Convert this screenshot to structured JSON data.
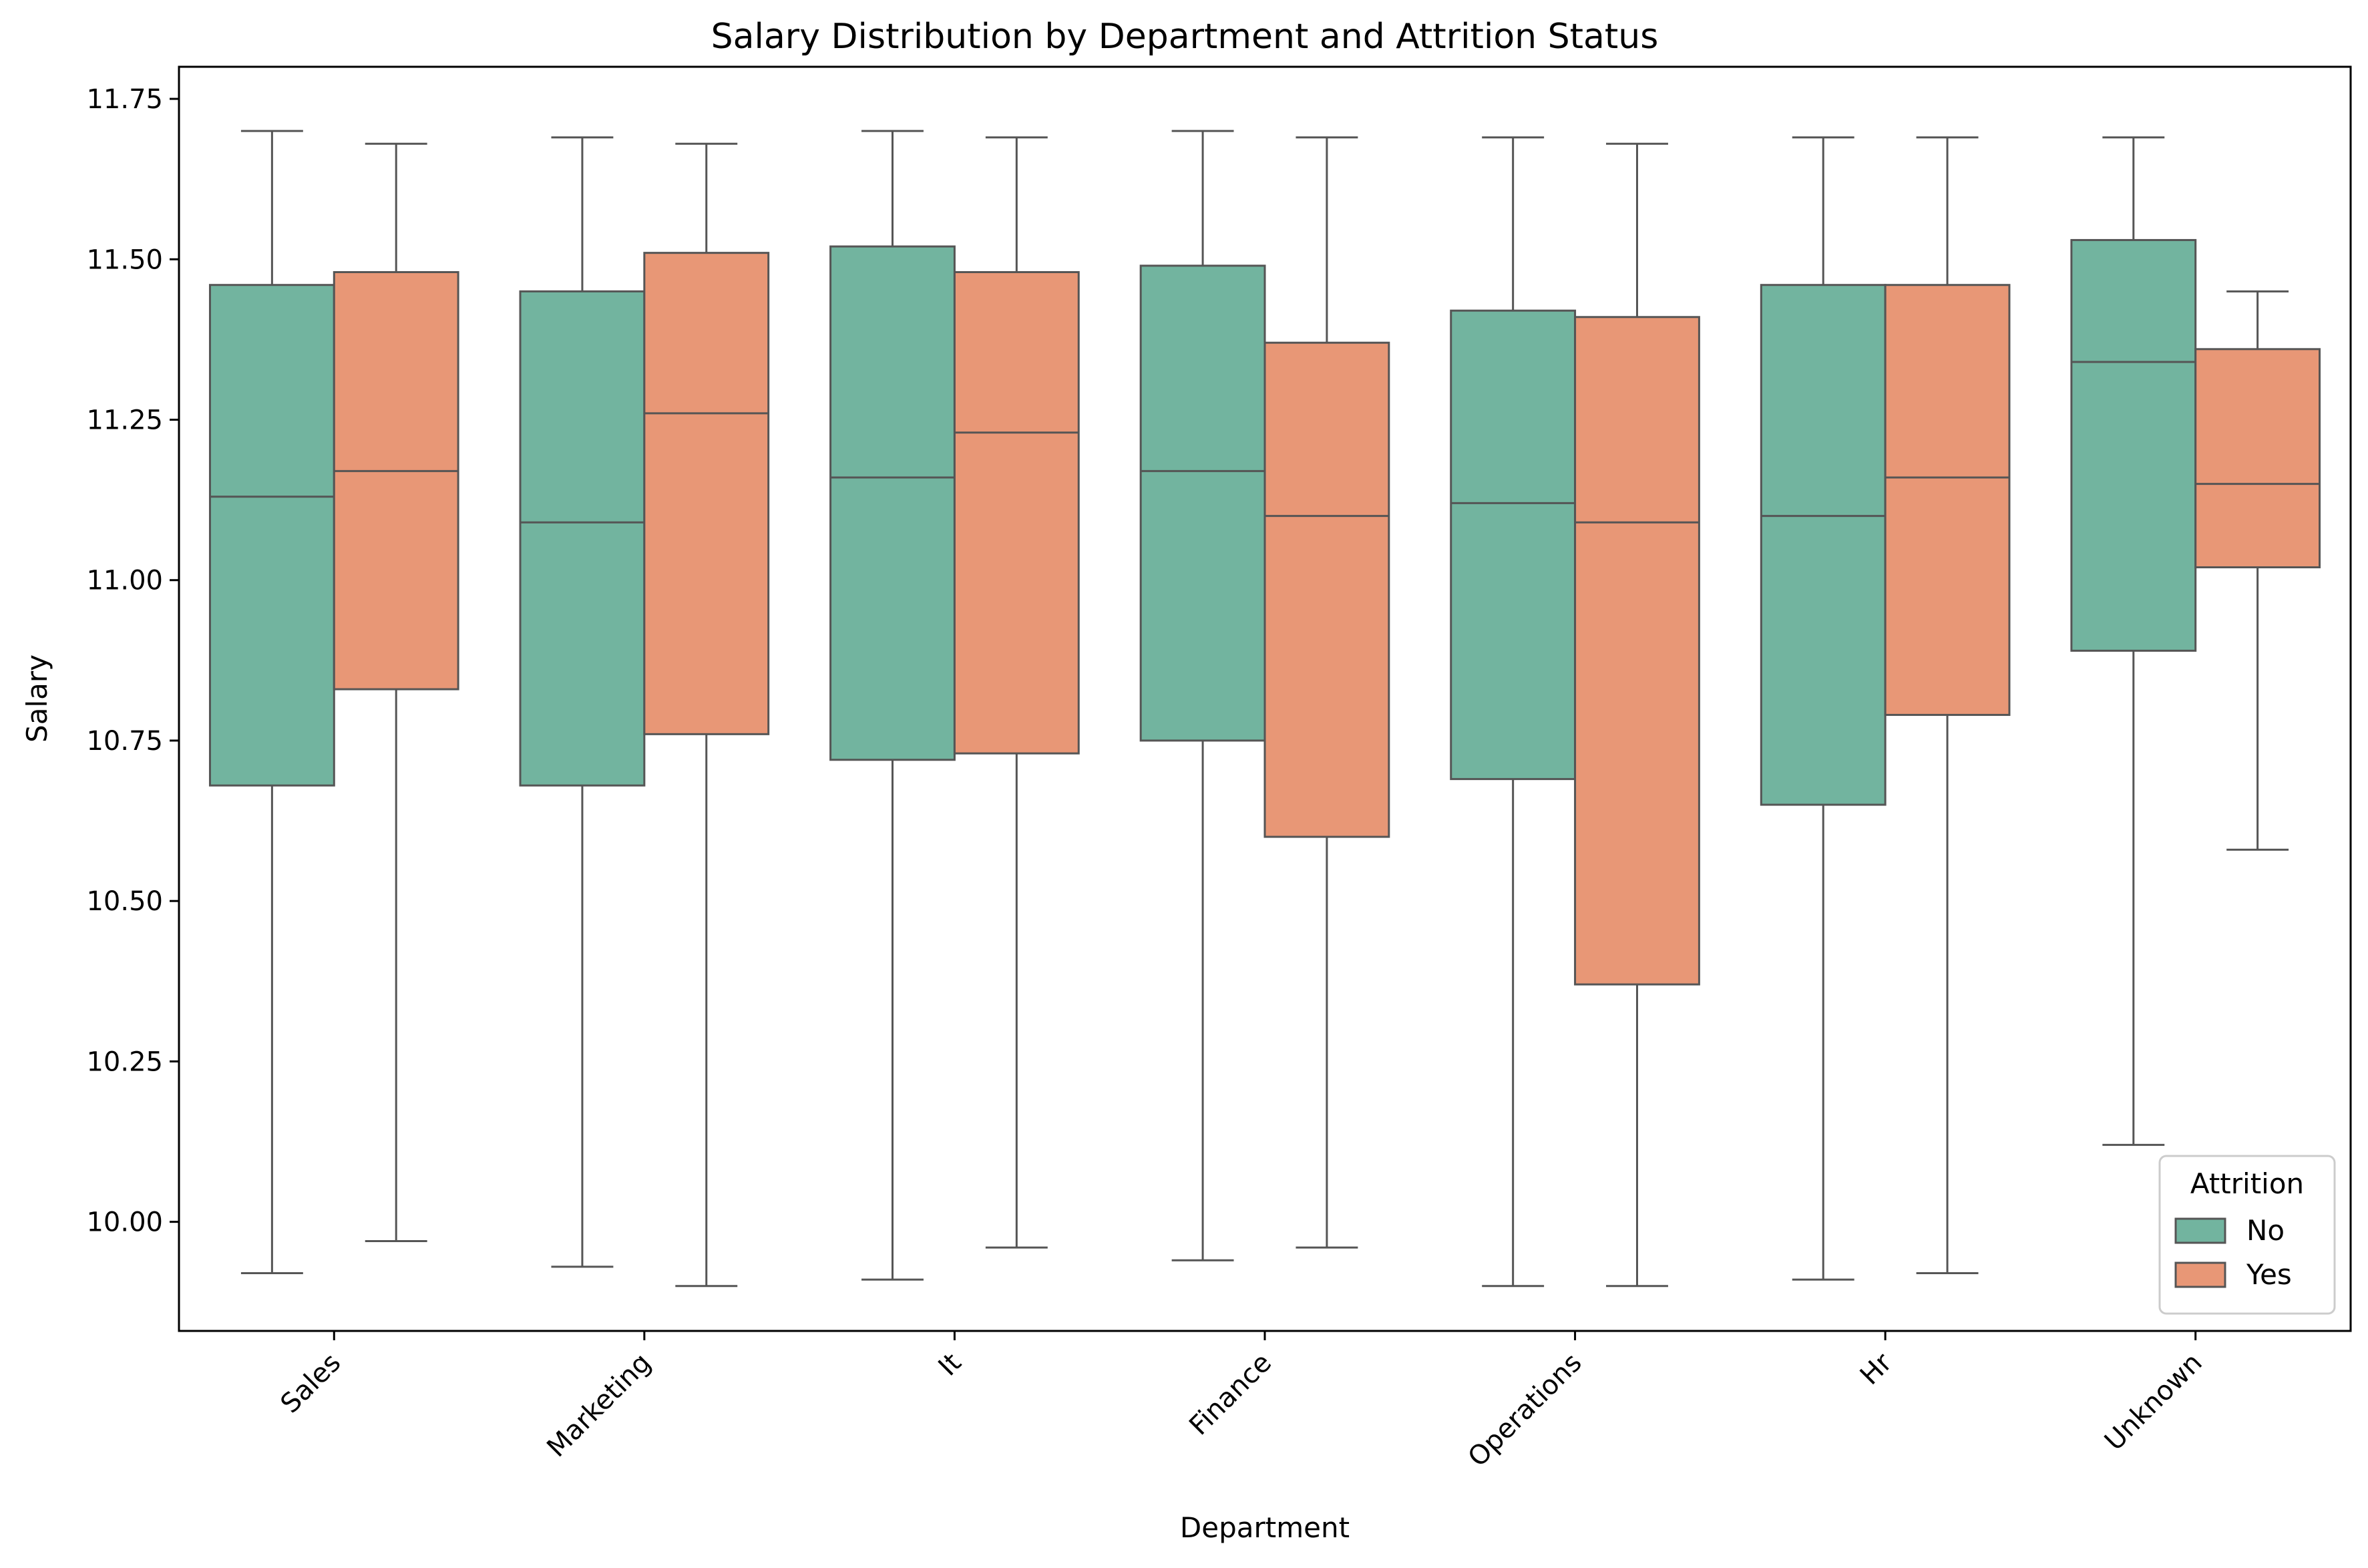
{
  "chart_data": {
    "type": "box",
    "title": "Salary Distribution by Department and Attrition Status",
    "xlabel": "Department",
    "ylabel": "Salary",
    "categories": [
      "Sales",
      "Marketing",
      "It",
      "Finance",
      "Operations",
      "Hr",
      "Unknown"
    ],
    "ylim": [
      9.83,
      11.8
    ],
    "yticks": [
      10.0,
      10.25,
      10.5,
      10.75,
      11.0,
      11.25,
      11.5,
      11.75
    ],
    "ytick_labels": [
      "10.00",
      "10.25",
      "10.50",
      "10.75",
      "11.00",
      "11.25",
      "11.50",
      "11.75"
    ],
    "grid": false,
    "legend": {
      "title": "Attrition",
      "placement": "lower-right"
    },
    "series": [
      {
        "name": "No",
        "color": "#72b49f",
        "boxes": [
          {
            "whisker_low": 9.92,
            "q1": 10.68,
            "median": 11.13,
            "q3": 11.46,
            "whisker_high": 11.7
          },
          {
            "whisker_low": 9.93,
            "q1": 10.68,
            "median": 11.09,
            "q3": 11.45,
            "whisker_high": 11.69
          },
          {
            "whisker_low": 9.91,
            "q1": 10.72,
            "median": 11.16,
            "q3": 11.52,
            "whisker_high": 11.7
          },
          {
            "whisker_low": 9.94,
            "q1": 10.75,
            "median": 11.17,
            "q3": 11.49,
            "whisker_high": 11.7
          },
          {
            "whisker_low": 9.9,
            "q1": 10.69,
            "median": 11.12,
            "q3": 11.42,
            "whisker_high": 11.69
          },
          {
            "whisker_low": 9.91,
            "q1": 10.65,
            "median": 11.1,
            "q3": 11.46,
            "whisker_high": 11.69
          },
          {
            "whisker_low": 10.12,
            "q1": 10.89,
            "median": 11.34,
            "q3": 11.53,
            "whisker_high": 11.69
          }
        ]
      },
      {
        "name": "Yes",
        "color": "#e89776",
        "boxes": [
          {
            "whisker_low": 9.97,
            "q1": 10.83,
            "median": 11.17,
            "q3": 11.48,
            "whisker_high": 11.68
          },
          {
            "whisker_low": 9.9,
            "q1": 10.76,
            "median": 11.26,
            "q3": 11.51,
            "whisker_high": 11.68
          },
          {
            "whisker_low": 9.96,
            "q1": 10.73,
            "median": 11.23,
            "q3": 11.48,
            "whisker_high": 11.69
          },
          {
            "whisker_low": 9.96,
            "q1": 10.6,
            "median": 11.1,
            "q3": 11.37,
            "whisker_high": 11.69
          },
          {
            "whisker_low": 9.9,
            "q1": 10.37,
            "median": 11.09,
            "q3": 11.41,
            "whisker_high": 11.68
          },
          {
            "whisker_low": 9.92,
            "q1": 10.79,
            "median": 11.16,
            "q3": 11.46,
            "whisker_high": 11.69
          },
          {
            "whisker_low": 10.58,
            "q1": 11.02,
            "median": 11.15,
            "q3": 11.36,
            "whisker_high": 11.45
          }
        ]
      }
    ]
  }
}
